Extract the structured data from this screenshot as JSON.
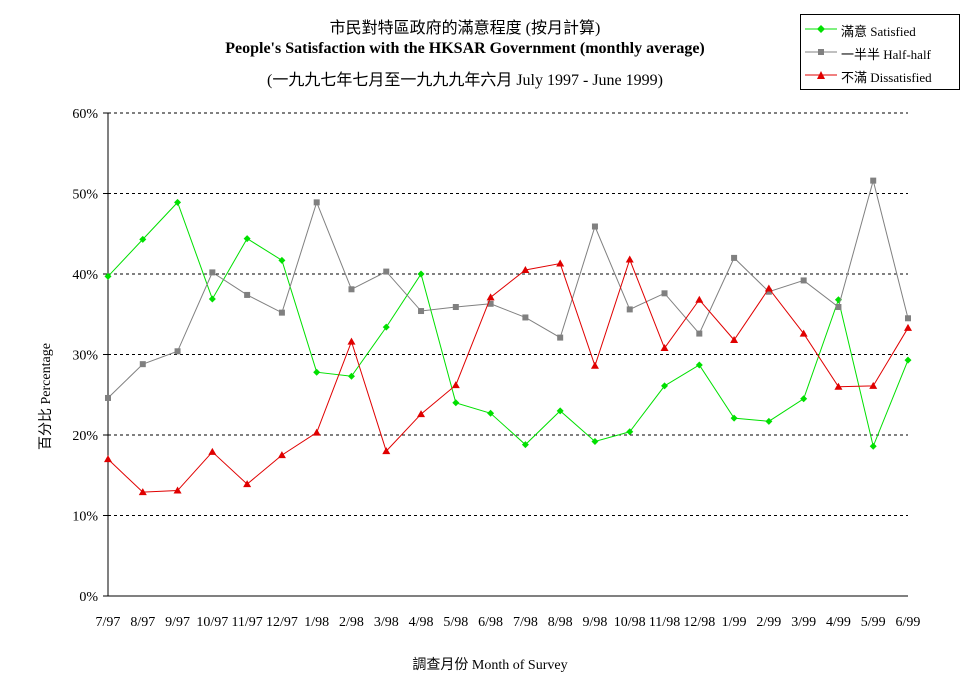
{
  "chart_data": {
    "type": "line",
    "title": "市民對特區政府的滿意程度 (按月計算)",
    "subtitle": "People's Satisfaction with the HKSAR Government (monthly average)",
    "subtitle2": "(一九九七年七月至一九九九年六月 July 1997 - June 1999)",
    "xlabel": "調查月份 Month of Survey",
    "ylabel": "百分比 Percentage",
    "ylim": [
      0,
      60
    ],
    "yticks": [
      "0%",
      "10%",
      "20%",
      "30%",
      "40%",
      "50%",
      "60%"
    ],
    "grid": true,
    "legend_position": "top-right",
    "categories": [
      "7/97",
      "8/97",
      "9/97",
      "10/97",
      "11/97",
      "12/97",
      "1/98",
      "2/98",
      "3/98",
      "4/98",
      "5/98",
      "6/98",
      "7/98",
      "8/98",
      "9/98",
      "10/98",
      "11/98",
      "12/98",
      "1/99",
      "2/99",
      "3/99",
      "4/99",
      "5/99",
      "6/99"
    ],
    "series": [
      {
        "name": "滿意 Satisfied",
        "color": "#00e000",
        "marker": "diamond",
        "values": [
          39.7,
          44.3,
          48.9,
          36.9,
          44.4,
          41.7,
          27.8,
          27.3,
          33.4,
          40.0,
          24.0,
          22.7,
          18.8,
          23.0,
          19.2,
          20.4,
          26.1,
          28.7,
          22.1,
          21.7,
          24.5,
          36.8,
          18.6,
          29.3
        ]
      },
      {
        "name": "一半半 Half-half",
        "color": "#808080",
        "marker": "square",
        "values": [
          24.6,
          28.8,
          30.4,
          40.2,
          37.4,
          35.2,
          48.9,
          38.1,
          40.3,
          35.4,
          35.9,
          36.3,
          34.6,
          32.1,
          45.9,
          35.6,
          37.6,
          32.6,
          42.0,
          37.8,
          39.2,
          35.9,
          51.6,
          34.5
        ]
      },
      {
        "name": "不滿 Dissatisfied",
        "color": "#e00000",
        "marker": "triangle",
        "values": [
          17.0,
          12.9,
          13.1,
          17.9,
          13.9,
          17.5,
          20.3,
          31.6,
          18.0,
          22.6,
          26.2,
          37.1,
          40.5,
          41.3,
          28.6,
          41.8,
          30.8,
          36.8,
          31.8,
          38.2,
          32.6,
          26.0,
          26.1,
          33.3
        ]
      }
    ]
  }
}
